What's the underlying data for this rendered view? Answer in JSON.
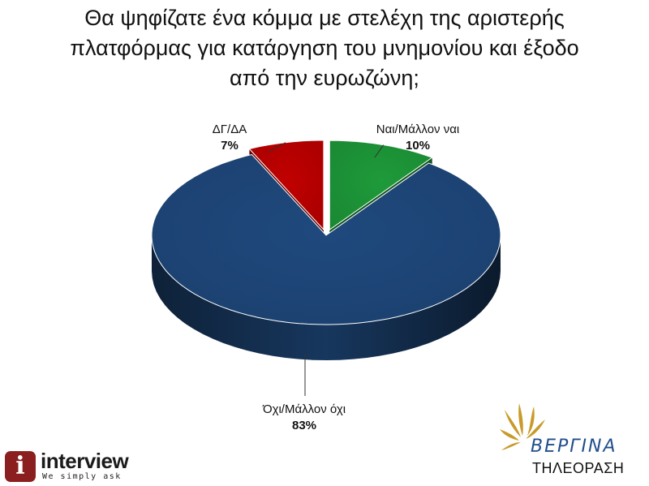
{
  "title": {
    "lines": [
      "Θα ψηφίζατε ένα κόμμα με στελέχη της αριστερής",
      "πλατφόρμας για κατάργηση του μνημονίου και έξοδο",
      "από την ευρωζώνη;"
    ]
  },
  "chart_data": {
    "type": "pie",
    "title": "Θα ψηφίζατε ένα κόμμα με στελέχη της αριστερής πλατφόρμας για κατάργηση του μνημονίου και έξοδο από την ευρωζώνη;",
    "slices": [
      {
        "label": "Ναι/Μάλλον ναι",
        "value": 10,
        "value_label": "10%",
        "color": "#1e9a3a",
        "exploded": true
      },
      {
        "label": "Όχι/Μάλλον όχι",
        "value": 83,
        "value_label": "83%",
        "color": "#1f497d",
        "exploded": false
      },
      {
        "label": "ΔΓ/ΔΑ",
        "value": 7,
        "value_label": "7%",
        "color": "#c00000",
        "exploded": true
      }
    ],
    "style": "3d",
    "legend": "none"
  },
  "logos": {
    "left": {
      "badge": "i",
      "word": "interview",
      "tagline": "We simply ask"
    },
    "right": {
      "brand": "ΒΕΡΓΙΝΑ",
      "sub": "ΤΗΛΕΟΡΑΣΗ"
    }
  }
}
